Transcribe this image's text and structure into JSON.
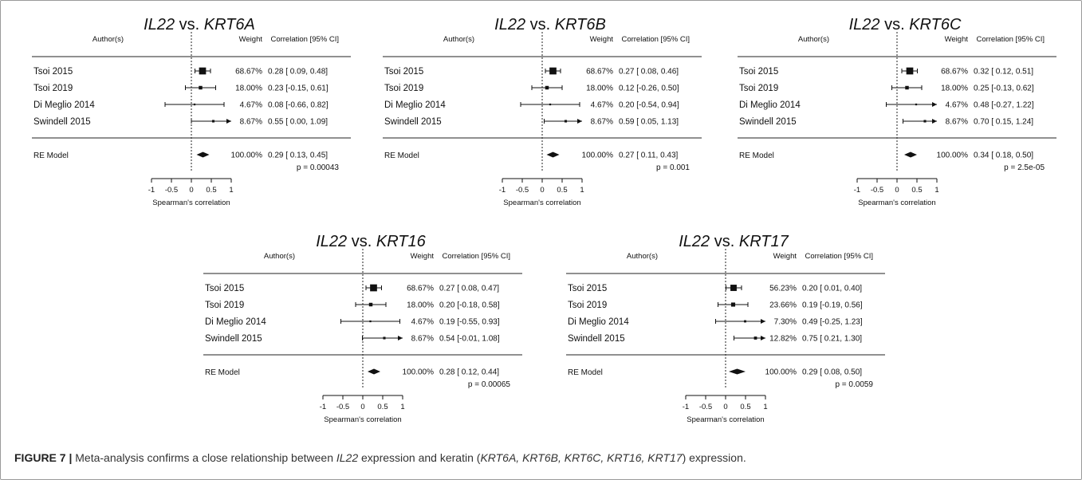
{
  "caption": {
    "label": "FIGURE 7 |",
    "parts": [
      {
        "text": " Meta-analysis confirms a close relationship between ",
        "italic": false
      },
      {
        "text": "IL22",
        "italic": true
      },
      {
        "text": " expression and keratin (",
        "italic": false
      },
      {
        "text": "KRT6A, KRT6B, KRT6C, KRT16, KRT17",
        "italic": true
      },
      {
        "text": ") expression.",
        "italic": false
      }
    ]
  },
  "chart_data": [
    {
      "type": "forest",
      "title_prefix": "IL22",
      "title_vs": " vs. ",
      "title_gene": "KRT6A",
      "header_author": "Author(s)",
      "header_weight": "Weight",
      "header_ci": "Correlation [95% CI]",
      "xlabel": "Spearman's correlation",
      "xticks": [
        "-1",
        "-0.5",
        "0",
        "0.5",
        "1"
      ],
      "xlim": [
        -1,
        1
      ],
      "studies": [
        {
          "name": "Tsoi 2015",
          "weight": "68.67%",
          "ci_text": "0.28 [ 0.09, 0.48]",
          "est": 0.28,
          "lo": 0.09,
          "hi": 0.48,
          "w": 68.67
        },
        {
          "name": "Tsoi 2019",
          "weight": "18.00%",
          "ci_text": "0.23 [-0.15, 0.61]",
          "est": 0.23,
          "lo": -0.15,
          "hi": 0.61,
          "w": 18.0
        },
        {
          "name": "Di Meglio 2014",
          "weight": "4.67%",
          "ci_text": "0.08 [-0.66, 0.82]",
          "est": 0.08,
          "lo": -0.66,
          "hi": 0.82,
          "w": 4.67
        },
        {
          "name": "Swindell 2015",
          "weight": "8.67%",
          "ci_text": "0.55 [ 0.00, 1.09]",
          "est": 0.55,
          "lo": 0.0,
          "hi": 1.09,
          "w": 8.67
        }
      ],
      "re_model": {
        "name": "RE Model",
        "weight": "100.00%",
        "ci_text": "0.29 [ 0.13, 0.45]",
        "est": 0.29,
        "lo": 0.13,
        "hi": 0.45
      },
      "pvalue": "p = 0.00043"
    },
    {
      "type": "forest",
      "title_prefix": "IL22",
      "title_vs": " vs. ",
      "title_gene": "KRT6B",
      "header_author": "Author(s)",
      "header_weight": "Weight",
      "header_ci": "Correlation [95% CI]",
      "xlabel": "Spearman's correlation",
      "xticks": [
        "-1",
        "-0.5",
        "0",
        "0.5",
        "1"
      ],
      "xlim": [
        -1,
        1
      ],
      "studies": [
        {
          "name": "Tsoi 2015",
          "weight": "68.67%",
          "ci_text": "0.27 [ 0.08, 0.46]",
          "est": 0.27,
          "lo": 0.08,
          "hi": 0.46,
          "w": 68.67
        },
        {
          "name": "Tsoi 2019",
          "weight": "18.00%",
          "ci_text": "0.12 [-0.26, 0.50]",
          "est": 0.12,
          "lo": -0.26,
          "hi": 0.5,
          "w": 18.0
        },
        {
          "name": "Di Meglio 2014",
          "weight": "4.67%",
          "ci_text": "0.20 [-0.54, 0.94]",
          "est": 0.2,
          "lo": -0.54,
          "hi": 0.94,
          "w": 4.67
        },
        {
          "name": "Swindell 2015",
          "weight": "8.67%",
          "ci_text": "0.59 [ 0.05, 1.13]",
          "est": 0.59,
          "lo": 0.05,
          "hi": 1.13,
          "w": 8.67
        }
      ],
      "re_model": {
        "name": "RE Model",
        "weight": "100.00%",
        "ci_text": "0.27 [ 0.11, 0.43]",
        "est": 0.27,
        "lo": 0.11,
        "hi": 0.43
      },
      "pvalue": "p = 0.001"
    },
    {
      "type": "forest",
      "title_prefix": "IL22",
      "title_vs": " vs. ",
      "title_gene": "KRT6C",
      "header_author": "Author(s)",
      "header_weight": "Weight",
      "header_ci": "Correlation [95% CI]",
      "xlabel": "Spearman's correlation",
      "xticks": [
        "-1",
        "-0.5",
        "0",
        "0.5",
        "1"
      ],
      "xlim": [
        -1,
        1
      ],
      "studies": [
        {
          "name": "Tsoi 2015",
          "weight": "68.67%",
          "ci_text": "0.32 [ 0.12, 0.51]",
          "est": 0.32,
          "lo": 0.12,
          "hi": 0.51,
          "w": 68.67
        },
        {
          "name": "Tsoi 2019",
          "weight": "18.00%",
          "ci_text": "0.25 [-0.13, 0.62]",
          "est": 0.25,
          "lo": -0.13,
          "hi": 0.62,
          "w": 18.0
        },
        {
          "name": "Di Meglio 2014",
          "weight": "4.67%",
          "ci_text": "0.48 [-0.27, 1.22]",
          "est": 0.48,
          "lo": -0.27,
          "hi": 1.22,
          "w": 4.67
        },
        {
          "name": "Swindell 2015",
          "weight": "8.67%",
          "ci_text": "0.70 [ 0.15, 1.24]",
          "est": 0.7,
          "lo": 0.15,
          "hi": 1.24,
          "w": 8.67
        }
      ],
      "re_model": {
        "name": "RE Model",
        "weight": "100.00%",
        "ci_text": "0.34 [ 0.18, 0.50]",
        "est": 0.34,
        "lo": 0.18,
        "hi": 0.5
      },
      "pvalue": "p = 2.5e-05"
    },
    {
      "type": "forest",
      "title_prefix": "IL22",
      "title_vs": " vs. ",
      "title_gene": "KRT16",
      "header_author": "Author(s)",
      "header_weight": "Weight",
      "header_ci": "Correlation [95% CI]",
      "xlabel": "Spearman's correlation",
      "xticks": [
        "-1",
        "-0.5",
        "0",
        "0.5",
        "1"
      ],
      "xlim": [
        -1,
        1
      ],
      "studies": [
        {
          "name": "Tsoi 2015",
          "weight": "68.67%",
          "ci_text": "0.27 [ 0.08, 0.47]",
          "est": 0.27,
          "lo": 0.08,
          "hi": 0.47,
          "w": 68.67
        },
        {
          "name": "Tsoi 2019",
          "weight": "18.00%",
          "ci_text": "0.20 [-0.18, 0.58]",
          "est": 0.2,
          "lo": -0.18,
          "hi": 0.58,
          "w": 18.0
        },
        {
          "name": "Di Meglio 2014",
          "weight": "4.67%",
          "ci_text": "0.19 [-0.55, 0.93]",
          "est": 0.19,
          "lo": -0.55,
          "hi": 0.93,
          "w": 4.67
        },
        {
          "name": "Swindell 2015",
          "weight": "8.67%",
          "ci_text": "0.54 [-0.01, 1.08]",
          "est": 0.54,
          "lo": -0.01,
          "hi": 1.08,
          "w": 8.67
        }
      ],
      "re_model": {
        "name": "RE Model",
        "weight": "100.00%",
        "ci_text": "0.28 [ 0.12, 0.44]",
        "est": 0.28,
        "lo": 0.12,
        "hi": 0.44
      },
      "pvalue": "p = 0.00065"
    },
    {
      "type": "forest",
      "title_prefix": "IL22",
      "title_vs": " vs. ",
      "title_gene": "KRT17",
      "header_author": "Author(s)",
      "header_weight": "Weight",
      "header_ci": "Correlation [95% CI]",
      "xlabel": "Spearman's correlation",
      "xticks": [
        "-1",
        "-0.5",
        "0",
        "0.5",
        "1"
      ],
      "xlim": [
        -1,
        1
      ],
      "studies": [
        {
          "name": "Tsoi 2015",
          "weight": "56.23%",
          "ci_text": "0.20 [ 0.01, 0.40]",
          "est": 0.2,
          "lo": 0.01,
          "hi": 0.4,
          "w": 56.23
        },
        {
          "name": "Tsoi 2019",
          "weight": "23.66%",
          "ci_text": "0.19 [-0.19, 0.56]",
          "est": 0.19,
          "lo": -0.19,
          "hi": 0.56,
          "w": 23.66
        },
        {
          "name": "Di Meglio 2014",
          "weight": "7.30%",
          "ci_text": "0.49 [-0.25, 1.23]",
          "est": 0.49,
          "lo": -0.25,
          "hi": 1.23,
          "w": 7.3
        },
        {
          "name": "Swindell 2015",
          "weight": "12.82%",
          "ci_text": "0.75 [ 0.21, 1.30]",
          "est": 0.75,
          "lo": 0.21,
          "hi": 1.3,
          "w": 12.82
        }
      ],
      "re_model": {
        "name": "RE Model",
        "weight": "100.00%",
        "ci_text": "0.29 [ 0.08, 0.50]",
        "est": 0.29,
        "lo": 0.08,
        "hi": 0.5
      },
      "pvalue": "p = 0.0059"
    }
  ]
}
